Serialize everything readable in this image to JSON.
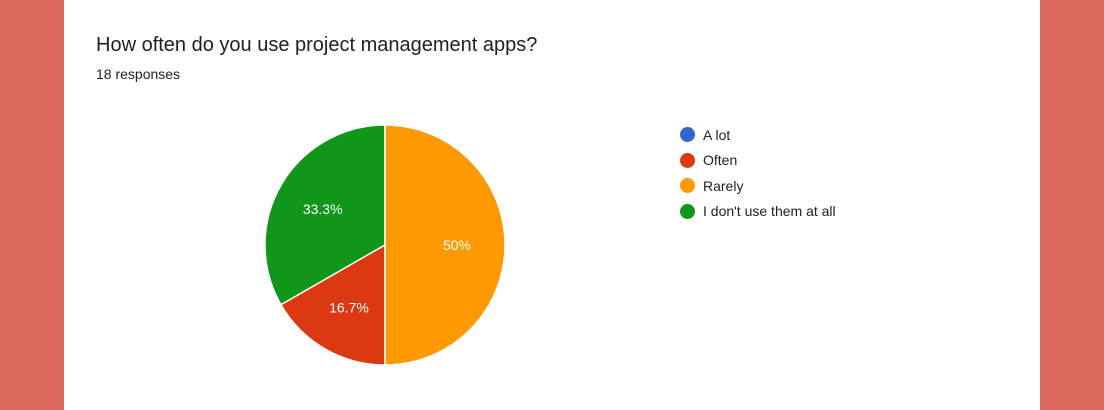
{
  "question": {
    "title": "How often do you use project management apps?",
    "responses": "18 responses"
  },
  "chart_data": {
    "type": "pie",
    "title": "How often do you use project management apps?",
    "subtitle": "18 responses",
    "legend_position": "right",
    "start_angle_deg": 90,
    "slices": [
      {
        "label": "I don't use them at all",
        "value": 33.3,
        "display": "33.3%",
        "color": "#109618"
      },
      {
        "label": "Often",
        "value": 16.7,
        "display": "16.7%",
        "color": "#dc3912"
      },
      {
        "label": "Rarely",
        "value": 50,
        "display": "50%",
        "color": "#ff9900"
      },
      {
        "label": "A lot",
        "value": 0,
        "display": "",
        "color": "#3366cc"
      }
    ],
    "legend": [
      {
        "label": "A lot",
        "color": "#3366cc"
      },
      {
        "label": "Often",
        "color": "#dc3912"
      },
      {
        "label": "Rarely",
        "color": "#ff9900"
      },
      {
        "label": "I don't use them at all",
        "color": "#109618"
      }
    ]
  }
}
